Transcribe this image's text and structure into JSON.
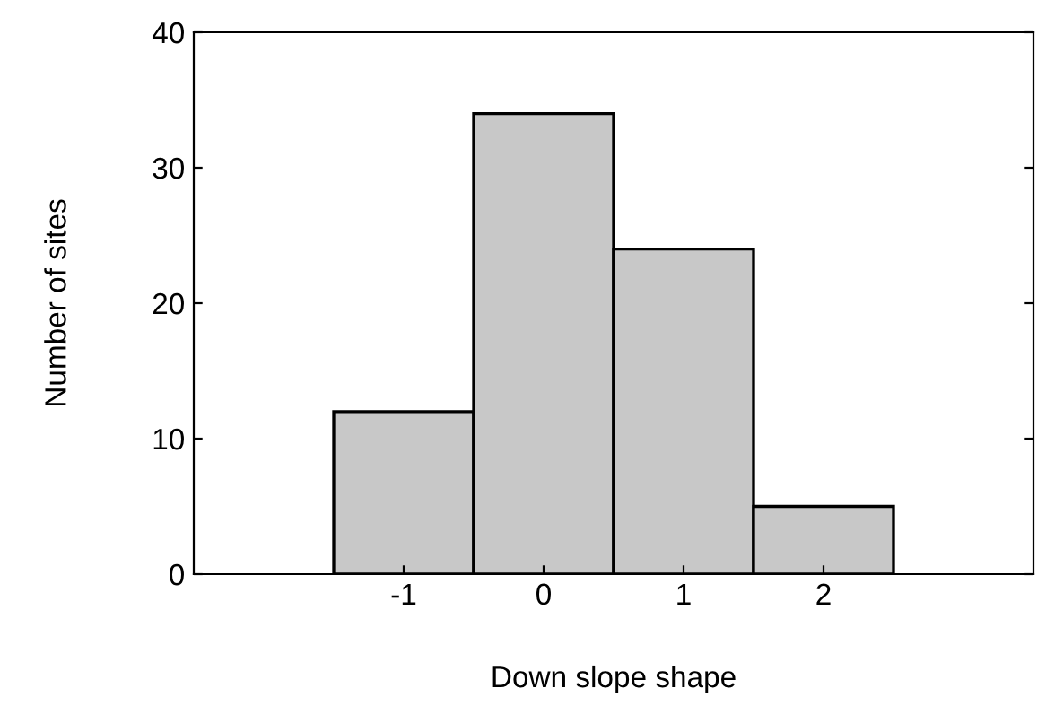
{
  "chart_data": {
    "type": "histogram",
    "xlabel": "Down slope shape",
    "ylabel": "Number of sites",
    "bins": [
      -1.5,
      -0.5,
      0.5,
      1.5,
      2.5
    ],
    "values": [
      12,
      34,
      24,
      5
    ],
    "color": "#c8c8c8",
    "xlim": [
      -2.5,
      3.5
    ],
    "xticks": [
      -1,
      0,
      1,
      2
    ],
    "ylim": [
      0,
      40
    ],
    "yticks": [
      0,
      10,
      20,
      30,
      40
    ],
    "grid": false
  }
}
